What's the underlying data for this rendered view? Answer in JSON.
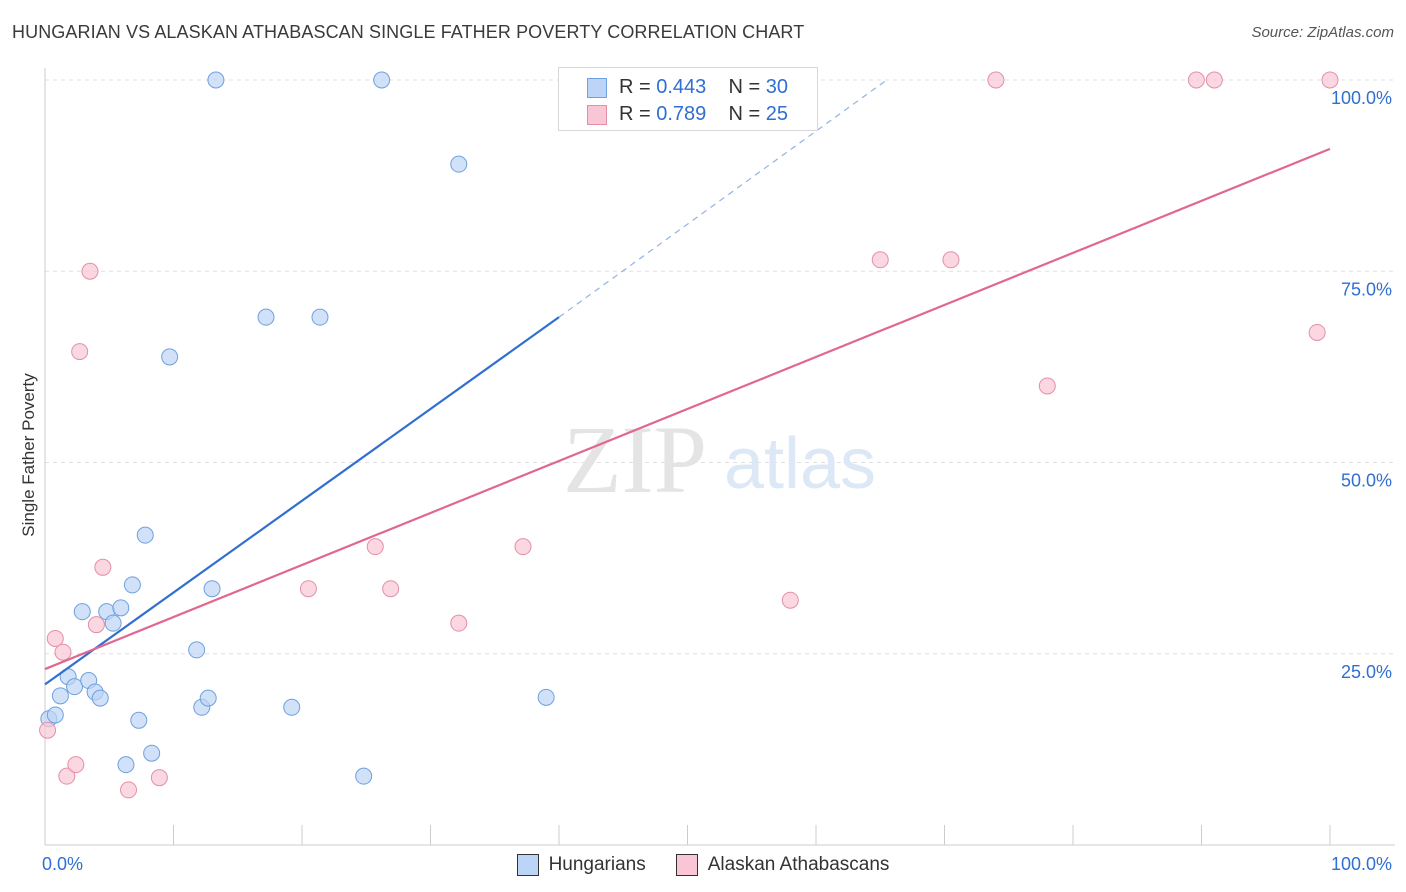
{
  "title": "HUNGARIAN VS ALASKAN ATHABASCAN SINGLE FATHER POVERTY CORRELATION CHART",
  "source": "Source: ZipAtlas.com",
  "watermark": {
    "zip": "ZIP",
    "atlas": "atlas"
  },
  "legend": {
    "r_label": "R =",
    "n_label": "N =",
    "items": [
      {
        "r": "0.443",
        "n": "30"
      },
      {
        "r": "0.789",
        "n": "25"
      }
    ]
  },
  "colors": {
    "hungarians_fill": "#bcd4f5",
    "hungarians_stroke": "#6fa0e0",
    "hungarians_line": "#2f6fd1",
    "alaskan_fill": "#f8c6d4",
    "alaskan_stroke": "#e48fa8",
    "alaskan_line": "#e06890",
    "tick_label": "#2f6fd1"
  },
  "chart_data": {
    "type": "scatter",
    "xlabel": "",
    "ylabel": "Single Father Poverty",
    "xlim": [
      0,
      100
    ],
    "ylim": [
      0,
      100
    ],
    "x_tick_labels": [
      "0.0%",
      "100.0%"
    ],
    "y_tick_labels": [
      "25.0%",
      "50.0%",
      "75.0%",
      "100.0%"
    ],
    "y_ticks": [
      25,
      50,
      75,
      100
    ],
    "grid": true,
    "legend_position": "top-center",
    "series": [
      {
        "name": "Hungarians",
        "points": [
          [
            0.3,
            16.5
          ],
          [
            0.8,
            17.0
          ],
          [
            1.2,
            19.5
          ],
          [
            1.8,
            22.0
          ],
          [
            2.3,
            20.7
          ],
          [
            2.9,
            30.5
          ],
          [
            3.4,
            21.5
          ],
          [
            3.9,
            20.0
          ],
          [
            4.3,
            19.2
          ],
          [
            4.8,
            30.5
          ],
          [
            5.3,
            29.0
          ],
          [
            5.9,
            31.0
          ],
          [
            6.3,
            10.5
          ],
          [
            6.8,
            34.0
          ],
          [
            7.3,
            16.3
          ],
          [
            7.8,
            40.5
          ],
          [
            8.3,
            12.0
          ],
          [
            9.7,
            63.8
          ],
          [
            11.8,
            25.5
          ],
          [
            12.2,
            18.0
          ],
          [
            12.7,
            19.2
          ],
          [
            13.0,
            33.5
          ],
          [
            13.3,
            100.0
          ],
          [
            17.2,
            69.0
          ],
          [
            19.2,
            18.0
          ],
          [
            21.4,
            69.0
          ],
          [
            24.8,
            9.0
          ],
          [
            26.2,
            100.0
          ],
          [
            32.2,
            89.0
          ],
          [
            39.0,
            19.3
          ]
        ],
        "trend": {
          "x": [
            0,
            40
          ],
          "y": [
            21.0,
            69.0
          ],
          "dashed_to": [
            65.5,
            100.0
          ]
        }
      },
      {
        "name": "Alaskan Athabascans",
        "points": [
          [
            0.2,
            15.0
          ],
          [
            0.8,
            27.0
          ],
          [
            1.4,
            25.2
          ],
          [
            1.7,
            9.0
          ],
          [
            2.4,
            10.5
          ],
          [
            2.7,
            64.5
          ],
          [
            3.5,
            75.0
          ],
          [
            4.0,
            28.8
          ],
          [
            4.5,
            36.3
          ],
          [
            6.5,
            7.2
          ],
          [
            8.9,
            8.8
          ],
          [
            20.5,
            33.5
          ],
          [
            25.7,
            39.0
          ],
          [
            26.9,
            33.5
          ],
          [
            32.2,
            29.0
          ],
          [
            37.2,
            39.0
          ],
          [
            58.0,
            32.0
          ],
          [
            65.0,
            76.5
          ],
          [
            70.5,
            76.5
          ],
          [
            74.0,
            100.0
          ],
          [
            78.0,
            60.0
          ],
          [
            89.6,
            100.0
          ],
          [
            91.0,
            100.0
          ],
          [
            99.0,
            67.0
          ],
          [
            100.0,
            100.0
          ]
        ],
        "trend": {
          "x": [
            0,
            100
          ],
          "y": [
            23.0,
            91.0
          ]
        }
      }
    ]
  }
}
